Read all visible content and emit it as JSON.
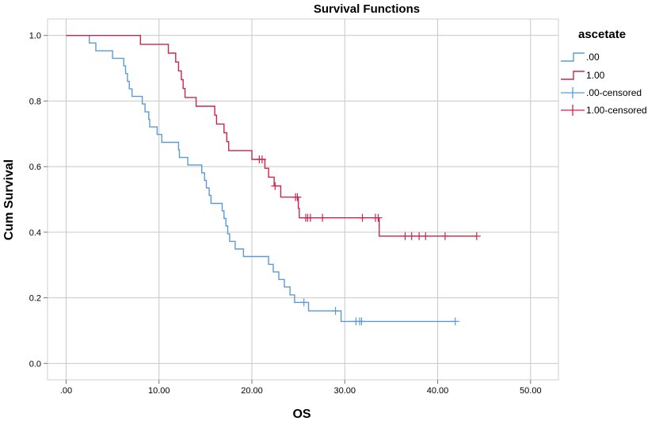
{
  "chart_data": {
    "type": "line",
    "step": true,
    "title": "Survival Functions",
    "xlabel": "OS",
    "ylabel": "Cum Survival",
    "xlim": [
      -2,
      53
    ],
    "ylim": [
      -0.05,
      1.05
    ],
    "xticks": [
      0,
      10,
      20,
      30,
      40,
      50
    ],
    "xtick_labels": [
      ".00",
      "10.00",
      "20.00",
      "30.00",
      "40.00",
      "50.00"
    ],
    "yticks": [
      0.0,
      0.2,
      0.4,
      0.6,
      0.8,
      1.0
    ],
    "ytick_labels": [
      "0.0",
      "0.2",
      "0.4",
      "0.6",
      "0.8",
      "1.0"
    ],
    "grid": true,
    "legend": {
      "title": "ascetate",
      "placement": "top-right outside",
      "entries": [
        ".00",
        "1.00",
        ".00-censored",
        "1.00-censored"
      ]
    },
    "series": [
      {
        "name": ".00",
        "color": "#5b9bd5",
        "steps": [
          [
            0,
            1.0
          ],
          [
            2.5,
            0.977
          ],
          [
            3.2,
            0.953
          ],
          [
            5.0,
            0.93
          ],
          [
            6.2,
            0.907
          ],
          [
            6.4,
            0.884
          ],
          [
            6.6,
            0.86
          ],
          [
            6.8,
            0.837
          ],
          [
            7.1,
            0.814
          ],
          [
            8.2,
            0.791
          ],
          [
            8.5,
            0.767
          ],
          [
            8.9,
            0.744
          ],
          [
            9.0,
            0.721
          ],
          [
            9.8,
            0.698
          ],
          [
            10.3,
            0.674
          ],
          [
            12.1,
            0.651
          ],
          [
            12.2,
            0.628
          ],
          [
            13.1,
            0.605
          ],
          [
            14.6,
            0.581
          ],
          [
            14.9,
            0.558
          ],
          [
            15.1,
            0.535
          ],
          [
            15.4,
            0.512
          ],
          [
            15.6,
            0.488
          ],
          [
            16.8,
            0.465
          ],
          [
            17.0,
            0.442
          ],
          [
            17.2,
            0.419
          ],
          [
            17.4,
            0.395
          ],
          [
            17.6,
            0.372
          ],
          [
            18.2,
            0.349
          ],
          [
            19.1,
            0.326
          ],
          [
            21.8,
            0.302
          ],
          [
            22.3,
            0.279
          ],
          [
            22.9,
            0.256
          ],
          [
            23.5,
            0.233
          ],
          [
            24.1,
            0.209
          ],
          [
            24.6,
            0.186
          ],
          [
            26.1,
            0.16
          ],
          [
            29.6,
            0.128
          ],
          [
            41.9,
            0.128
          ]
        ],
        "censored": [
          [
            25.6,
            0.186
          ],
          [
            29.0,
            0.16
          ],
          [
            31.2,
            0.128
          ],
          [
            31.6,
            0.128
          ],
          [
            31.8,
            0.128
          ],
          [
            41.9,
            0.128
          ]
        ]
      },
      {
        "name": "1.00",
        "color": "#c8264b",
        "steps": [
          [
            0,
            1.0
          ],
          [
            8.0,
            0.973
          ],
          [
            11.0,
            0.946
          ],
          [
            11.8,
            0.919
          ],
          [
            12.1,
            0.892
          ],
          [
            12.4,
            0.865
          ],
          [
            12.6,
            0.838
          ],
          [
            12.8,
            0.811
          ],
          [
            14.0,
            0.784
          ],
          [
            16.0,
            0.757
          ],
          [
            16.2,
            0.73
          ],
          [
            17.0,
            0.703
          ],
          [
            17.3,
            0.676
          ],
          [
            17.5,
            0.649
          ],
          [
            20.0,
            0.622
          ],
          [
            21.4,
            0.595
          ],
          [
            21.8,
            0.568
          ],
          [
            22.4,
            0.541
          ],
          [
            23.1,
            0.507
          ],
          [
            25.0,
            0.473
          ],
          [
            25.1,
            0.444
          ],
          [
            33.7,
            0.388
          ],
          [
            44.2,
            0.388
          ]
        ],
        "censored": [
          [
            20.8,
            0.622
          ],
          [
            21.1,
            0.622
          ],
          [
            22.5,
            0.541
          ],
          [
            24.7,
            0.507
          ],
          [
            24.9,
            0.507
          ],
          [
            25.8,
            0.444
          ],
          [
            26.0,
            0.444
          ],
          [
            26.3,
            0.444
          ],
          [
            27.6,
            0.444
          ],
          [
            31.9,
            0.444
          ],
          [
            33.3,
            0.444
          ],
          [
            33.6,
            0.444
          ],
          [
            36.5,
            0.388
          ],
          [
            37.2,
            0.388
          ],
          [
            38.0,
            0.388
          ],
          [
            38.7,
            0.388
          ],
          [
            40.8,
            0.388
          ],
          [
            44.2,
            0.388
          ]
        ]
      }
    ]
  }
}
